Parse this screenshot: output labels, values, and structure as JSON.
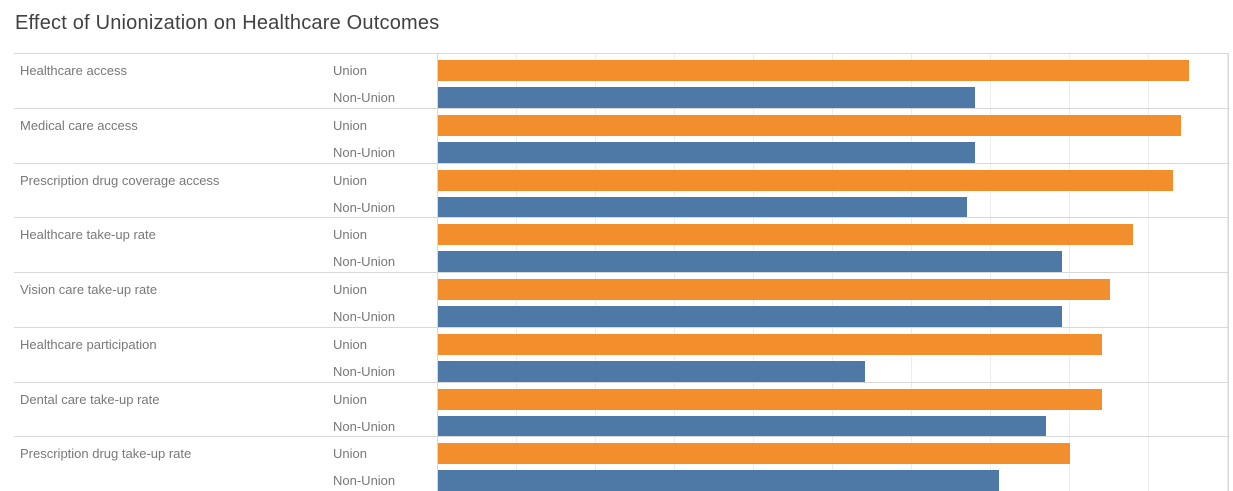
{
  "title": "Effect of Unionization on Healthcare Outcomes",
  "colors": {
    "union_bar": "#F28E2B",
    "non_union_bar": "#4E79A7",
    "row_separator": "#D8D8D8",
    "gridline": "#EDEDED",
    "label_text": "#787878",
    "title_text": "#414141"
  },
  "chart_data": {
    "type": "bar",
    "orientation": "horizontal",
    "title": "Effect of Unionization on Healthcare Outcomes",
    "xlabel": "",
    "ylabel": "",
    "xlim": [
      0,
      100
    ],
    "gridlines": "vertical, every 10 units, light gray",
    "legend_position": "inline row labels (no separate legend)",
    "categories": [
      "Healthcare access",
      "Medical care access",
      "Prescription drug coverage access",
      "Healthcare take-up rate",
      "Vision care take-up rate",
      "Healthcare participation",
      "Dental care take-up rate",
      "Prescription drug take-up rate"
    ],
    "series": [
      {
        "name": "Union",
        "color": "#F28E2B",
        "values": [
          95,
          94,
          93,
          88,
          85,
          84,
          84,
          80
        ]
      },
      {
        "name": "Non-Union",
        "color": "#4E79A7",
        "values": [
          68,
          68,
          67,
          79,
          79,
          54,
          77,
          71
        ]
      }
    ]
  }
}
